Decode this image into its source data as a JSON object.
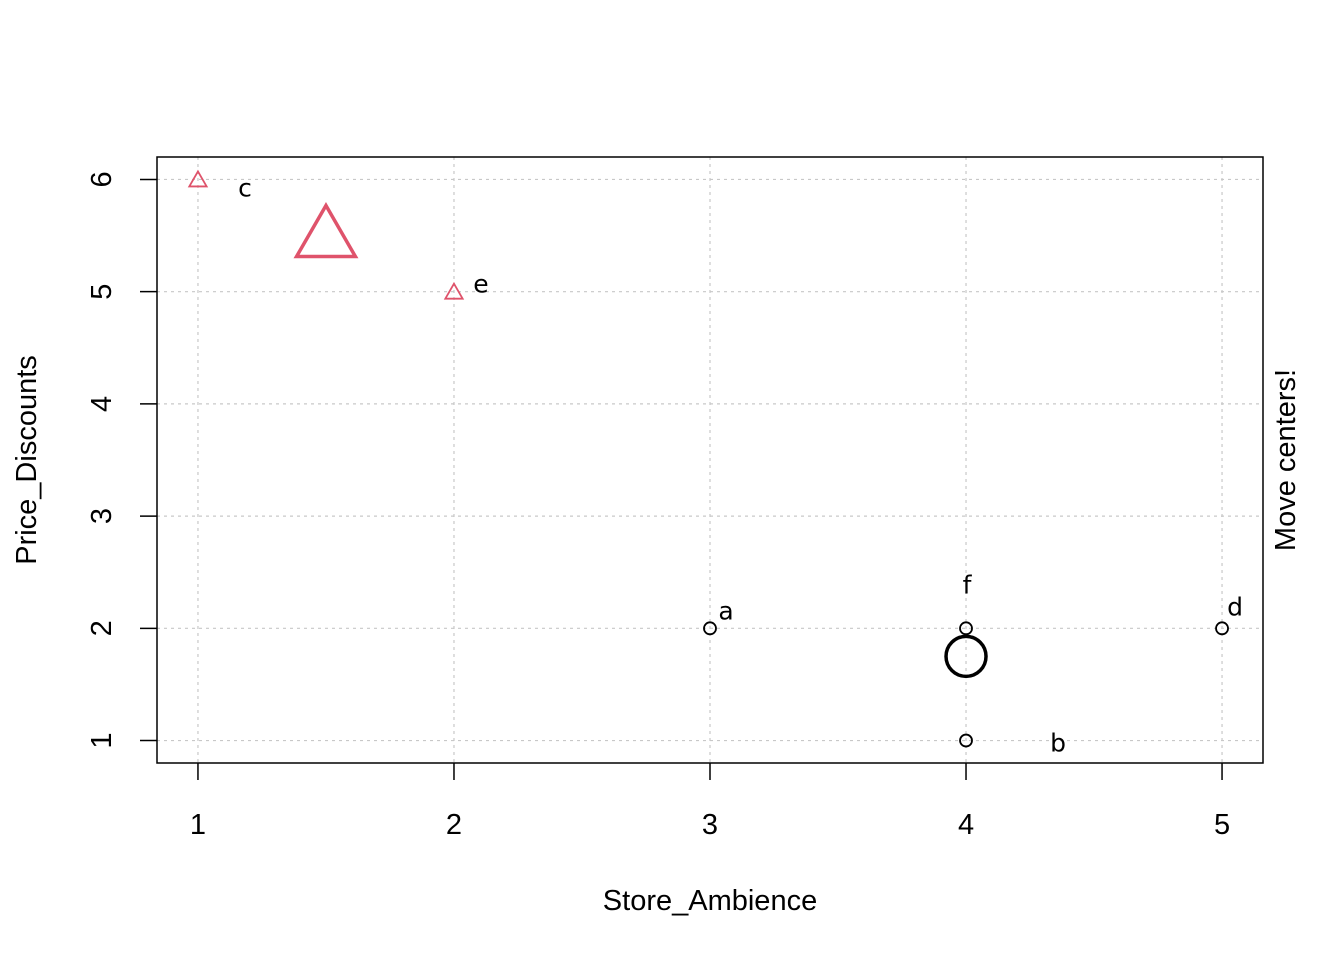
{
  "chart_data": {
    "type": "scatter",
    "xlabel": "Store_Ambience",
    "ylabel": "Price_Discounts",
    "side_label": "Move centers!",
    "xlim": [
      0.84,
      5.16
    ],
    "ylim": [
      0.8,
      6.2
    ],
    "x_ticks": [
      1,
      2,
      3,
      4,
      5
    ],
    "y_ticks": [
      1,
      2,
      3,
      4,
      5,
      6
    ],
    "grid": true,
    "colors": {
      "cluster_1": "#000000",
      "cluster_2": "#DF536B",
      "grid": "#C8C8C8"
    },
    "points": [
      {
        "label": "a",
        "x": 3,
        "y": 2,
        "cluster": 1,
        "shape": "circle"
      },
      {
        "label": "b",
        "x": 4,
        "y": 1,
        "cluster": 1,
        "shape": "circle"
      },
      {
        "label": "c",
        "x": 1,
        "y": 6,
        "cluster": 2,
        "shape": "triangle"
      },
      {
        "label": "d",
        "x": 5,
        "y": 2,
        "cluster": 1,
        "shape": "circle"
      },
      {
        "label": "e",
        "x": 2,
        "y": 5,
        "cluster": 2,
        "shape": "triangle"
      },
      {
        "label": "f",
        "x": 4,
        "y": 2,
        "cluster": 1,
        "shape": "circle"
      }
    ],
    "centers": [
      {
        "cluster": 1,
        "x": 4.0,
        "y": 1.75,
        "shape": "circle"
      },
      {
        "cluster": 2,
        "x": 1.5,
        "y": 5.5,
        "shape": "triangle"
      }
    ]
  }
}
